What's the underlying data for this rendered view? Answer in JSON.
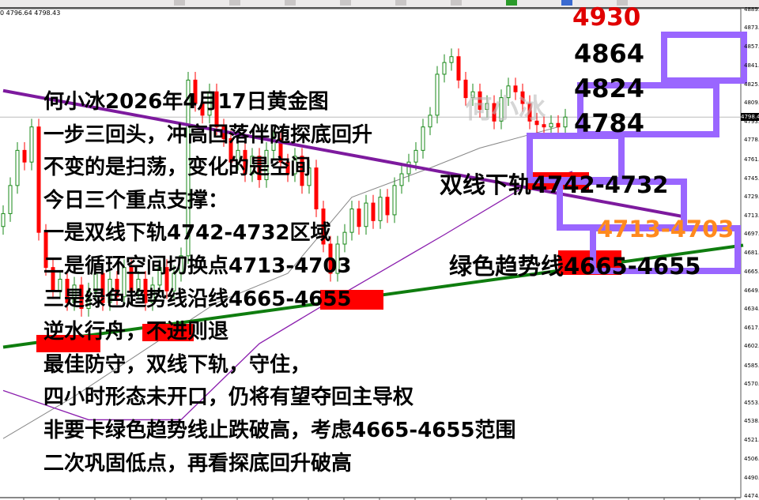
{
  "toolbar": {
    "icons": [
      "crosshair-icon",
      "line-icon",
      "zoom-in-icon",
      "zoom-out-icon",
      "grid-icon",
      "period-icon",
      "add-indicator-icon",
      "refresh-icon",
      "template-icon"
    ]
  },
  "header": {
    "ohlc_text": "0 4796.64 4798.43"
  },
  "colors": {
    "bull": "#1a8a1a",
    "bear": "#ff0000",
    "zone_box": "#9a66ff",
    "highlight": "#ff0000",
    "orange_label": "#ff8a1e",
    "trend_green": "#0f7d0f",
    "trend_purple": "#7d1a9e",
    "ma_gray": "#888888",
    "ma_purple": "#8b1fae"
  },
  "chart_data": {
    "type": "candlestick",
    "instrument": "gold",
    "current_price": "4798.43",
    "ylim": [
      4474.2,
      4889.6
    ],
    "y_ticks": [
      "4889.6",
      "4873.8",
      "4857.6",
      "4841.9",
      "4825.7",
      "4809.9",
      "4793.7",
      "4778.0",
      "4761.8",
      "4745.6",
      "4729.8",
      "4713.6",
      "4697.9",
      "4681.7",
      "4665.9",
      "4649.7",
      "4634.0",
      "4617.8",
      "4602.0",
      "4585.8",
      "4570.1",
      "4553.9",
      "4538.1",
      "4521.9",
      "4506.2",
      "4490.0",
      "4474.2"
    ],
    "closes": [
      4716,
      4740,
      4770,
      4760,
      4790,
      4700,
      4670,
      4650,
      4660,
      4640,
      4655,
      4635,
      4650,
      4665,
      4640,
      4660,
      4645,
      4670,
      4650,
      4660,
      4640,
      4655,
      4670,
      4650,
      4665,
      4680,
      4830,
      4810,
      4800,
      4820,
      4790,
      4780,
      4760,
      4770,
      4750,
      4765,
      4745,
      4770,
      4780,
      4760,
      4750,
      4765,
      4740,
      4755,
      4720,
      4690,
      4665,
      4690,
      4700,
      4720,
      4705,
      4725,
      4710,
      4730,
      4715,
      4740,
      4750,
      4760,
      4770,
      4790,
      4800,
      4835,
      4845,
      4850,
      4830,
      4815,
      4820,
      4805,
      4810,
      4795,
      4815,
      4825,
      4820,
      4810,
      4795,
      4792,
      4790,
      4793,
      4790,
      4798.43
    ],
    "first_open": 4705,
    "lines": {
      "trend_purple": [
        [
          0,
          4821
        ],
        [
          96,
          4713
        ]
      ],
      "trend_green": [
        [
          0,
          4602
        ],
        [
          104,
          4689
        ]
      ],
      "ma_gray": [
        [
          0,
          4524
        ],
        [
          10,
          4560
        ],
        [
          20,
          4600
        ],
        [
          30,
          4640
        ],
        [
          40,
          4665
        ],
        [
          49,
          4730
        ],
        [
          60,
          4755
        ],
        [
          67,
          4772
        ],
        [
          78,
          4790
        ]
      ],
      "ma_purple": [
        [
          0,
          4565
        ],
        [
          12,
          4540
        ],
        [
          25,
          4540
        ],
        [
          36,
          4605
        ],
        [
          47,
          4645
        ],
        [
          62,
          4698
        ],
        [
          73,
          4738
        ],
        [
          80,
          4752
        ]
      ]
    }
  },
  "annotations": {
    "left_text": [
      "何小冰2026年4月17日黄金图",
      "一步三回头，冲高回落伴随探底回升",
      "不变的是扫荡，变化的是空间",
      "今日三个重点支撑：",
      "一是双线下轨4742-4732区域",
      "二是循环空间切换点4713-4703",
      "三是绿色趋势线沿线4665-4655",
      "逆水行舟，不进则退",
      "最佳防守，双线下轨，守住，",
      "四小时形态未开口，仍将有望夺回主导权",
      "非要卡绿色趋势线止跌破高，考虑4665-4655范围",
      "二次巩固低点，再看探底回升破高"
    ],
    "target_top": "4930",
    "targets": [
      "4864",
      "4824",
      "4784"
    ],
    "support_1": "双线下轨4742-4732",
    "support_2": "4713-4703",
    "support_3": "绿色趋势线4665-4655",
    "watermark": "何小冰"
  }
}
